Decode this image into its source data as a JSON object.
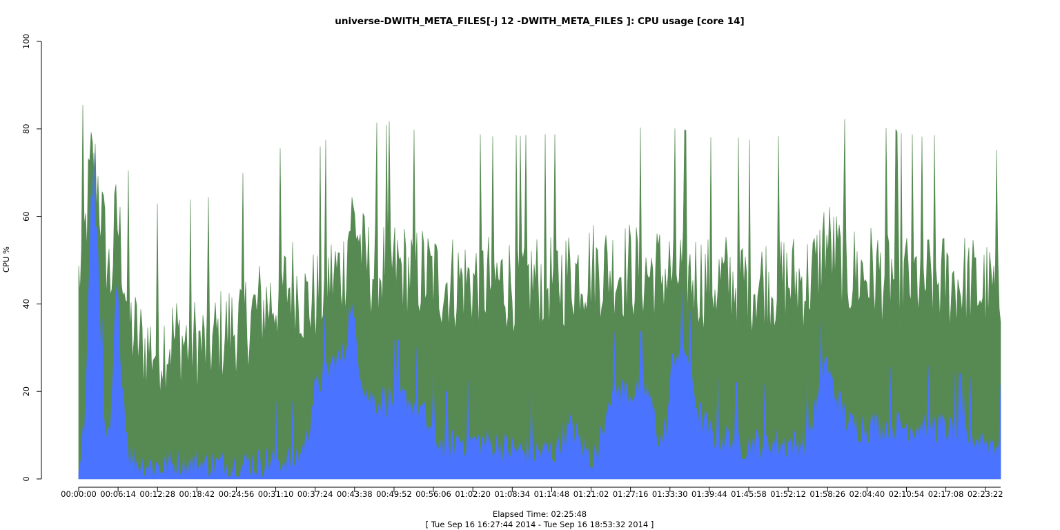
{
  "chart_data": {
    "type": "area",
    "title": "universe-DWITH_META_FILES[-j 12 -DWITH_META_FILES ]: CPU usage [core 14]",
    "ylabel": "CPU %",
    "xlabel": "Elapsed Time: 02:25:48",
    "xlabel_sub": "[ Tue Sep 16 16:27:44 2014 - Tue Sep 16 18:53:32 2014 ]",
    "ylim": [
      0,
      100
    ],
    "y_ticks": [
      0,
      20,
      40,
      60,
      80,
      100
    ],
    "y_tick_labels": [
      "0",
      "20",
      "40",
      "60",
      "80",
      "100"
    ],
    "xlim_seconds": [
      0,
      8748
    ],
    "x_ticks_seconds": [
      0,
      374,
      748,
      1122,
      1496,
      1870,
      2244,
      2618,
      2992,
      3366,
      3740,
      4114,
      4488,
      4862,
      5236,
      5610,
      5984,
      6358,
      6732,
      7106,
      7480,
      7854,
      8228,
      8602
    ],
    "x_tick_labels": [
      "00:00:00",
      "00:06:14",
      "00:12:28",
      "00:18:42",
      "00:24:56",
      "00:31:10",
      "00:37:24",
      "00:43:38",
      "00:49:52",
      "00:56:06",
      "01:02:20",
      "01:08:34",
      "01:14:48",
      "01:21:02",
      "01:27:16",
      "01:33:30",
      "01:39:44",
      "01:45:58",
      "01:52:12",
      "01:58:26",
      "02:04:40",
      "02:10:54",
      "02:17:08",
      "02:23:22"
    ],
    "grid": false,
    "legend": "none",
    "series": [
      {
        "color": "#4a74ff",
        "x_minutes": [
          0,
          1,
          2,
          3,
          4,
          5,
          6,
          7,
          8,
          10,
          12,
          15,
          20,
          25,
          30,
          34,
          36,
          37,
          38,
          40,
          42,
          43,
          44,
          45,
          46,
          48,
          50,
          52,
          54,
          56,
          58,
          60,
          65,
          70,
          75,
          77,
          78,
          80,
          82,
          84,
          86,
          88,
          90,
          92,
          93,
          94,
          96,
          98,
          100,
          105,
          110,
          115,
          117,
          118,
          119,
          120,
          122,
          125,
          130,
          135,
          140,
          145
        ],
        "values": [
          5,
          12,
          65,
          55,
          10,
          8,
          45,
          20,
          5,
          3,
          3,
          3,
          3,
          3,
          4,
          4,
          8,
          18,
          22,
          26,
          28,
          40,
          30,
          22,
          18,
          18,
          18,
          18,
          16,
          10,
          6,
          9,
          8,
          6,
          6,
          10,
          12,
          6,
          5,
          20,
          20,
          20,
          20,
          8,
          12,
          28,
          30,
          15,
          10,
          8,
          8,
          8,
          18,
          28,
          22,
          18,
          12,
          12,
          12,
          12,
          10,
          8
        ]
      },
      {
        "color": "#568a52",
        "x_minutes": [
          0,
          1,
          2,
          3,
          4,
          5,
          6,
          7,
          8,
          10,
          12,
          15,
          20,
          25,
          30,
          34,
          36,
          38,
          40,
          42,
          43,
          44,
          45,
          46,
          48,
          50,
          52,
          54,
          56,
          58,
          60,
          65,
          70,
          75,
          80,
          85,
          90,
          95,
          100,
          105,
          110,
          115,
          117,
          118,
          119,
          120,
          122,
          125,
          130,
          135,
          140,
          145
        ],
        "values": [
          45,
          55,
          72,
          68,
          55,
          45,
          60,
          50,
          35,
          30,
          30,
          32,
          30,
          35,
          40,
          45,
          40,
          42,
          46,
          48,
          60,
          58,
          50,
          48,
          48,
          48,
          47,
          47,
          46,
          45,
          45,
          45,
          45,
          45,
          48,
          48,
          47,
          47,
          45,
          45,
          45,
          45,
          48,
          55,
          52,
          50,
          47,
          47,
          46,
          45,
          45,
          42
        ]
      }
    ]
  }
}
